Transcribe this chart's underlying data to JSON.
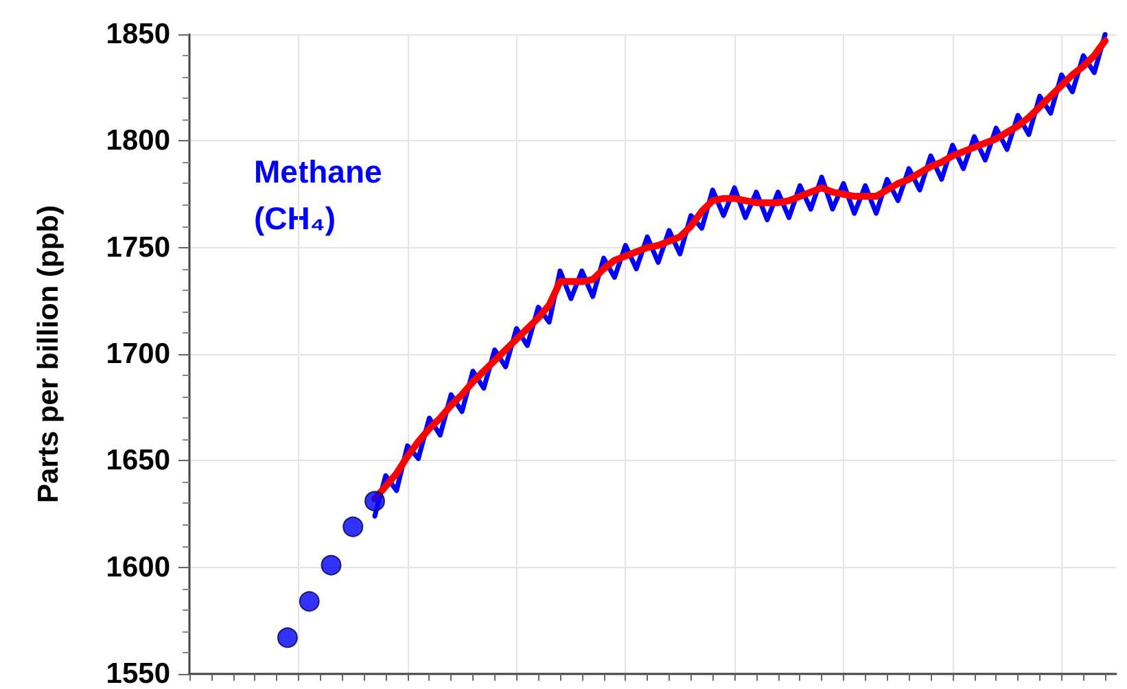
{
  "chart_data": {
    "type": "line",
    "ylabel": "Parts per billion (ppb)",
    "annotations": [
      "Methane (CH₄)"
    ],
    "categories": [
      null,
      null,
      null,
      null,
      null,
      null,
      null,
      null,
      null,
      null,
      null,
      null,
      null,
      null,
      null,
      null,
      null,
      null,
      null,
      null,
      null,
      null,
      null,
      null,
      null,
      null,
      null,
      null,
      null,
      null,
      null,
      null,
      null,
      null,
      null,
      null,
      null,
      null,
      null,
      null,
      null,
      null,
      null,
      null,
      null,
      null,
      null,
      null,
      null,
      null,
      null,
      null,
      null,
      null,
      null,
      null,
      null,
      null,
      null,
      null,
      null,
      null,
      null,
      null,
      null,
      null,
      null,
      null,
      null,
      null,
      null,
      null,
      null,
      null,
      null,
      null,
      null,
      null,
      null,
      null,
      null,
      null,
      null,
      null,
      null,
      null
    ],
    "series": [
      {
        "color": "#0000ff",
        "values": [
          null,
          null,
          null,
          null,
          null,
          null,
          null,
          null,
          null,
          null,
          null,
          null,
          null,
          null,
          null,
          null,
          null,
          1624,
          1643,
          1636,
          1657,
          1651,
          1670,
          1662,
          1681,
          1673,
          1692,
          1684,
          1702,
          1694,
          1712,
          1704,
          1722,
          1715,
          1739,
          1726,
          1739,
          1727,
          1745,
          1736,
          1751,
          1740,
          1755,
          1743,
          1758,
          1747,
          1765,
          1759,
          1777,
          1765,
          1778,
          1764,
          1776,
          1763,
          1776,
          1764,
          1779,
          1768,
          1783,
          1768,
          1780,
          1766,
          1779,
          1766,
          1782,
          1772,
          1787,
          1777,
          1793,
          1782,
          1798,
          1787,
          1802,
          1791,
          1806,
          1796,
          1812,
          1803,
          1821,
          1813,
          1831,
          1823,
          1840,
          1832,
          1850,
          null
        ]
      },
      {
        "color": "#ff0000",
        "values": [
          null,
          null,
          null,
          null,
          null,
          null,
          null,
          null,
          null,
          null,
          null,
          null,
          null,
          null,
          null,
          null,
          null,
          1632,
          1638,
          1644,
          1652,
          1659,
          1665,
          1670,
          1676,
          1681,
          1687,
          1692,
          1697,
          1702,
          1707,
          1712,
          1717,
          1723,
          1734,
          1734,
          1734,
          1735,
          1740,
          1744,
          1746,
          1748,
          1750,
          1751,
          1753,
          1755,
          1760,
          1767,
          1772,
          1773,
          1773,
          1772,
          1771,
          1771,
          1771,
          1772,
          1774,
          1776,
          1778,
          1776,
          1775,
          1774,
          1774,
          1774,
          1777,
          1780,
          1782,
          1785,
          1788,
          1790,
          1793,
          1795,
          1797,
          1799,
          1801,
          1804,
          1807,
          1811,
          1816,
          1821,
          1826,
          1831,
          1835,
          1840,
          1847,
          null
        ]
      },
      {
        "type": "scatter",
        "color": "#0000ff",
        "values": [
          null,
          null,
          null,
          null,
          null,
          null,
          null,
          null,
          null,
          1567,
          null,
          1584,
          null,
          1601,
          null,
          1619,
          null,
          1631,
          null,
          null,
          null,
          null,
          null,
          null,
          null,
          null,
          null,
          null,
          null,
          null,
          null,
          null,
          null,
          null,
          null,
          null,
          null,
          null,
          null,
          null,
          null,
          null,
          null,
          null,
          null,
          null,
          null,
          null,
          null,
          null,
          null,
          null,
          null,
          null,
          null,
          null,
          null,
          null,
          null,
          null,
          null,
          null,
          null,
          null,
          null,
          null,
          null,
          null,
          null,
          null,
          null,
          null,
          null,
          null,
          null,
          null,
          null,
          null,
          null,
          null,
          null,
          null,
          null,
          null,
          null,
          null
        ]
      }
    ],
    "ylim": [
      1550,
      1850
    ],
    "yticks": [
      1550,
      1600,
      1650,
      1700,
      1750,
      1800,
      1850
    ],
    "grid": true,
    "tick_labels": "y"
  }
}
